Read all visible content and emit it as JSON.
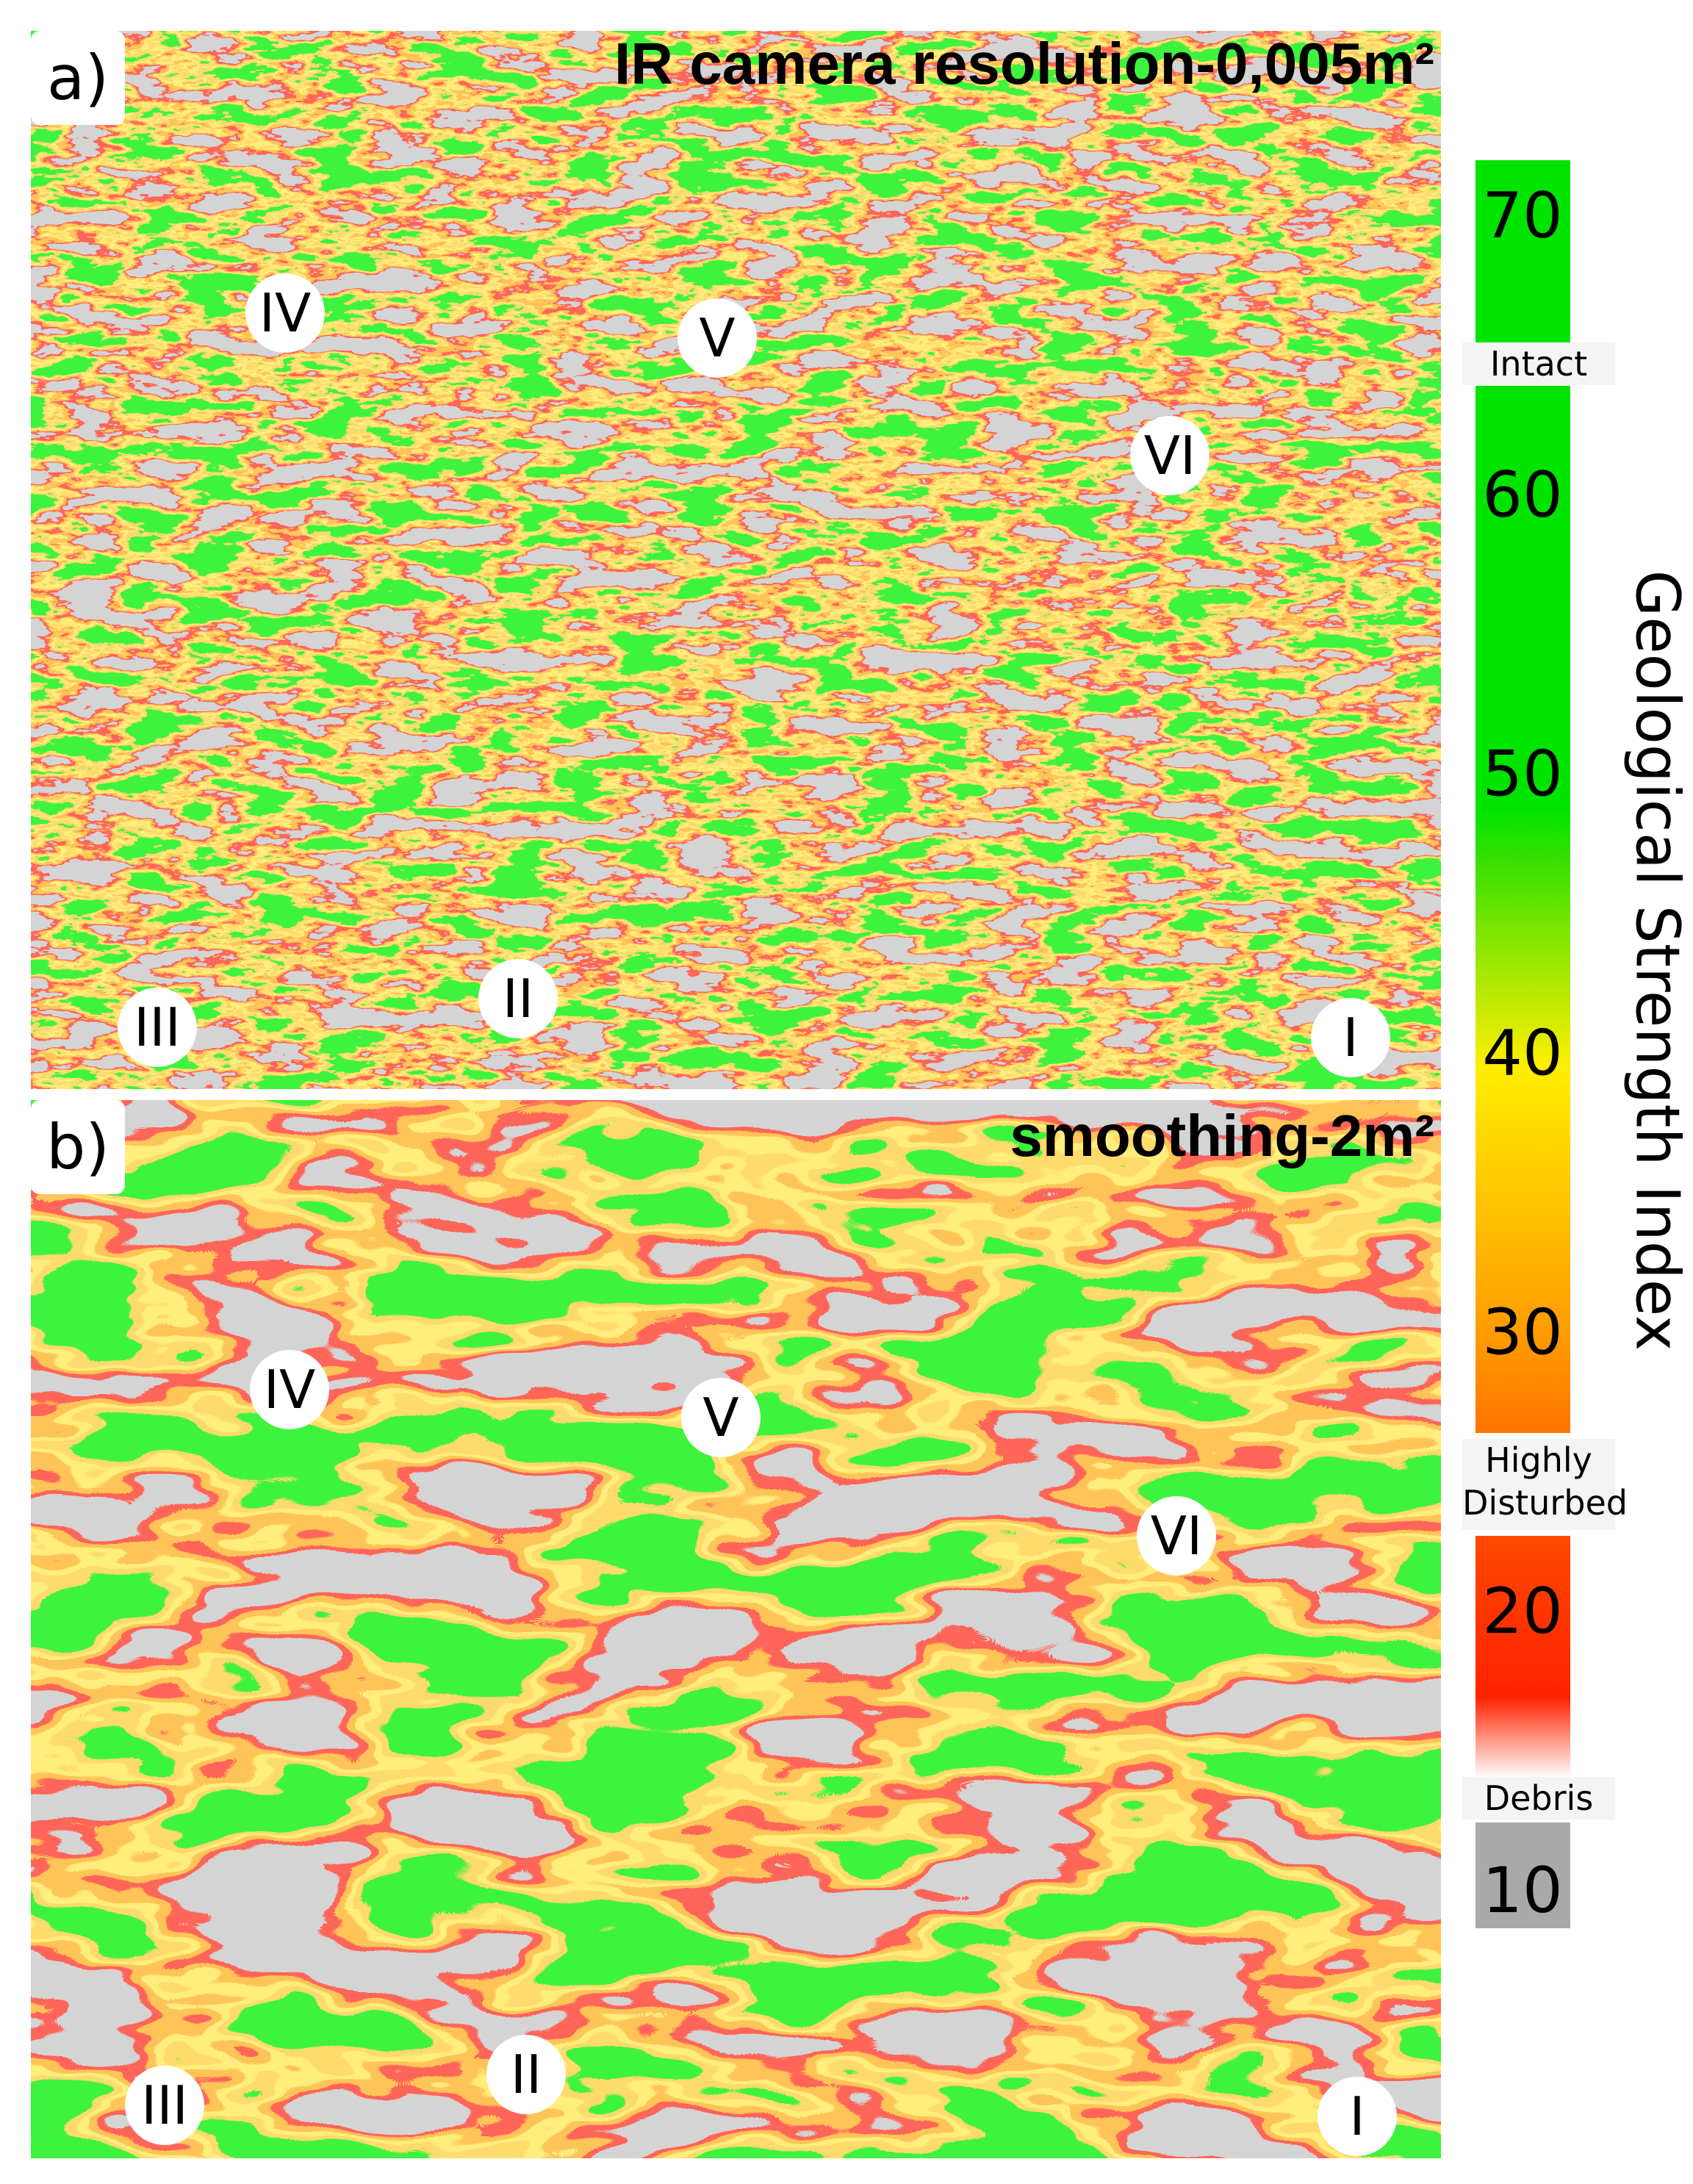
{
  "panels": [
    {
      "label": "a)",
      "title": "IR camera resolution-0,005m²",
      "zones": [
        "IV",
        "V",
        "VI",
        "III",
        "II",
        "I"
      ]
    },
    {
      "label": "b)",
      "title": "smoothing-2m²",
      "zones": [
        "IV",
        "V",
        "VI",
        "III",
        "II",
        "I"
      ]
    }
  ],
  "colorbar": {
    "title": "Geological Strength Index",
    "ticks": [
      70,
      60,
      50,
      40,
      30,
      20,
      10
    ],
    "classes": [
      "Intact",
      "Highly Disturbed",
      "Debris"
    ]
  }
}
